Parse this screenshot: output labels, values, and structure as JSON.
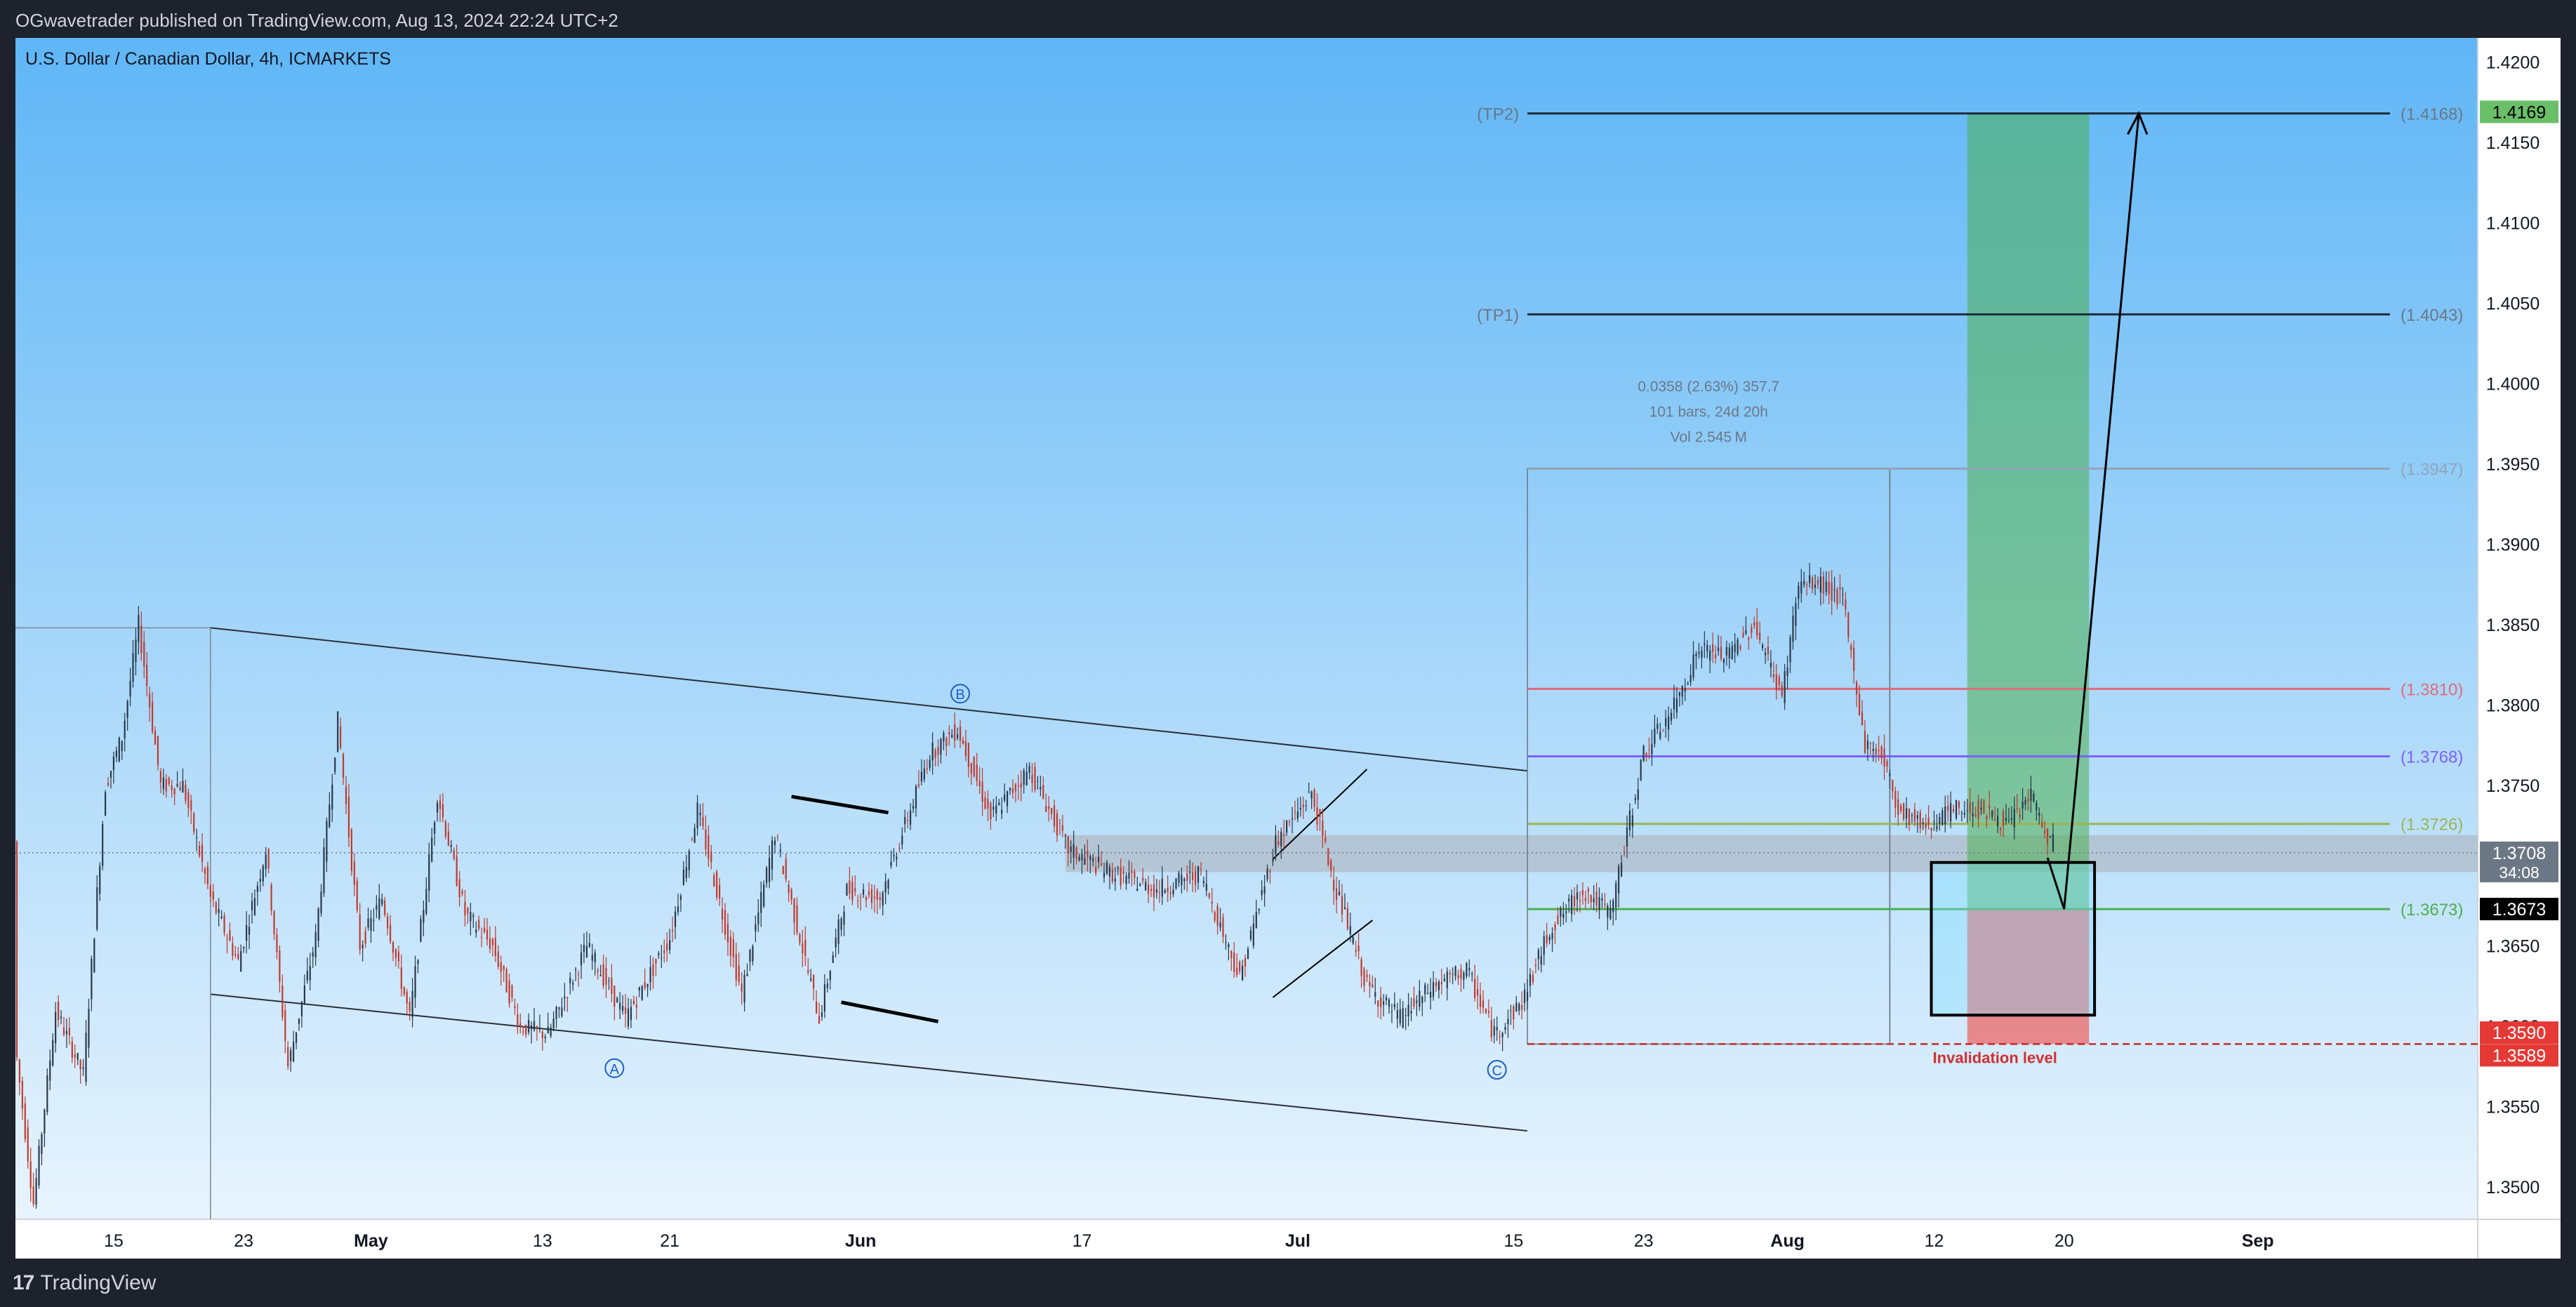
{
  "header": {
    "published": "OGwavetrader published on TradingView.com, Aug 13, 2024 22:24 UTC+2"
  },
  "chart_data": {
    "type": "candlestick",
    "title": "U.S. Dollar / Canadian Dollar, 4h, ICMARKETS",
    "y_axis": {
      "min": 1.348,
      "max": 1.4215,
      "ticks": [
        "1.4200",
        "1.4150",
        "1.4100",
        "1.4050",
        "1.4000",
        "1.3950",
        "1.3900",
        "1.3850",
        "1.3800",
        "1.3750",
        "1.3700",
        "1.3650",
        "1.3600",
        "1.3550",
        "1.3500"
      ],
      "tick_values": [
        1.42,
        1.415,
        1.41,
        1.405,
        1.4,
        1.395,
        1.39,
        1.385,
        1.38,
        1.375,
        1.37,
        1.365,
        1.36,
        1.355,
        1.35
      ]
    },
    "x_axis": {
      "labels": [
        {
          "text": "15",
          "bar": 35,
          "bold": false
        },
        {
          "text": "23",
          "bar": 82,
          "bold": false
        },
        {
          "text": "May",
          "bar": 128,
          "bold": true
        },
        {
          "text": "13",
          "bar": 190,
          "bold": false
        },
        {
          "text": "21",
          "bar": 236,
          "bold": false
        },
        {
          "text": "Jun",
          "bar": 305,
          "bold": true
        },
        {
          "text": "17",
          "bar": 385,
          "bold": false
        },
        {
          "text": "Jul",
          "bar": 463,
          "bold": true
        },
        {
          "text": "15",
          "bar": 541,
          "bold": false
        },
        {
          "text": "23",
          "bar": 588,
          "bold": false
        },
        {
          "text": "Aug",
          "bar": 640,
          "bold": true
        },
        {
          "text": "12",
          "bar": 693,
          "bold": false
        },
        {
          "text": "20",
          "bar": 740,
          "bold": false
        },
        {
          "text": "Sep",
          "bar": 810,
          "bold": true
        }
      ],
      "total_slots": 890
    },
    "price_keypoints": [
      [
        0,
        1.358
      ],
      [
        6,
        1.349
      ],
      [
        14,
        1.361
      ],
      [
        24,
        1.357
      ],
      [
        32,
        1.375
      ],
      [
        38,
        1.378
      ],
      [
        44,
        1.385
      ],
      [
        52,
        1.375
      ],
      [
        60,
        1.375
      ],
      [
        70,
        1.368
      ],
      [
        80,
        1.364
      ],
      [
        90,
        1.371
      ],
      [
        98,
        1.3575
      ],
      [
        108,
        1.3655
      ],
      [
        116,
        1.379
      ],
      [
        124,
        1.365
      ],
      [
        132,
        1.368
      ],
      [
        142,
        1.3605
      ],
      [
        152,
        1.3745
      ],
      [
        162,
        1.367
      ],
      [
        172,
        1.365
      ],
      [
        182,
        1.36
      ],
      [
        192,
        1.3595
      ],
      [
        206,
        1.365
      ],
      [
        220,
        1.3605
      ],
      [
        236,
        1.3655
      ],
      [
        246,
        1.3735
      ],
      [
        262,
        1.362
      ],
      [
        274,
        1.372
      ],
      [
        290,
        1.3605
      ],
      [
        300,
        1.3685
      ],
      [
        312,
        1.368
      ],
      [
        320,
        1.372
      ],
      [
        330,
        1.377
      ],
      [
        340,
        1.3785
      ],
      [
        352,
        1.373
      ],
      [
        366,
        1.376
      ],
      [
        380,
        1.371
      ],
      [
        396,
        1.3695
      ],
      [
        412,
        1.3685
      ],
      [
        428,
        1.3695
      ],
      [
        442,
        1.363
      ],
      [
        455,
        1.3715
      ],
      [
        468,
        1.3745
      ],
      [
        476,
        1.369
      ],
      [
        488,
        1.3625
      ],
      [
        500,
        1.3605
      ],
      [
        512,
        1.3625
      ],
      [
        524,
        1.3635
      ],
      [
        534,
        1.3595
      ],
      [
        544,
        1.3615
      ],
      [
        554,
        1.366
      ],
      [
        566,
        1.3685
      ],
      [
        576,
        1.367
      ],
      [
        588,
        1.377
      ],
      [
        598,
        1.3795
      ],
      [
        608,
        1.3835
      ],
      [
        618,
        1.383
      ],
      [
        628,
        1.385
      ],
      [
        638,
        1.3805
      ],
      [
        644,
        1.3875
      ],
      [
        652,
        1.3875
      ],
      [
        660,
        1.3865
      ],
      [
        668,
        1.3775
      ],
      [
        674,
        1.377
      ],
      [
        680,
        1.3735
      ],
      [
        690,
        1.3725
      ],
      [
        700,
        1.3735
      ],
      [
        710,
        1.3735
      ],
      [
        720,
        1.3725
      ],
      [
        728,
        1.3745
      ],
      [
        734,
        1.3715
      ]
    ],
    "last_bar_index": 736,
    "current_price_label": "1.3708",
    "countdown": "34:08",
    "levels": [
      {
        "name": "TP2",
        "value": 1.4168,
        "label": "(TP2)",
        "price_label": "(1.4168)",
        "color": "#1f2a36"
      },
      {
        "name": "TP1",
        "value": 1.4043,
        "label": "(TP1)",
        "price_label": "(1.4043)",
        "color": "#1f2a36"
      },
      {
        "name": "L1",
        "value": 1.3947,
        "label": "",
        "price_label": "(1.3947)",
        "color": "#90a4b8"
      },
      {
        "name": "L2",
        "value": 1.381,
        "label": "",
        "price_label": "(1.3810)",
        "color": "#e06b7a"
      },
      {
        "name": "L3",
        "value": 1.3768,
        "label": "",
        "price_label": "(1.3768)",
        "color": "#7b61ff"
      },
      {
        "name": "L4",
        "value": 1.3726,
        "label": "",
        "price_label": "(1.3726)",
        "color": "#9bb555"
      },
      {
        "name": "L5",
        "value": 1.3673,
        "label": "",
        "price_label": "(1.3673)",
        "color": "#4caf50"
      }
    ],
    "price_badges": [
      {
        "text": "1.4169",
        "value": 1.4169,
        "color": "#6abf69",
        "text_color": "#000000"
      },
      {
        "text": "1.3673",
        "value": 1.3673,
        "color": "#000000",
        "text_color": "#ffffff"
      },
      {
        "text": "1.3590",
        "value": 1.359,
        "color": "#e53935",
        "text_color": "#ffffff"
      },
      {
        "text": "1.3589",
        "value": 1.3589,
        "color": "#e53935",
        "text_color": "#ffffff"
      }
    ],
    "measure_box": {
      "line1": "0.0358 (2.63%) 357.7",
      "line2": "101 bars, 24d 20h",
      "line3": "Vol 2.545 M"
    },
    "wave_labels": [
      {
        "text": "A",
        "bar": 216,
        "value": 1.3574
      },
      {
        "text": "B",
        "bar": 341,
        "value": 1.3807
      },
      {
        "text": "C",
        "bar": 535,
        "value": 1.3573
      }
    ],
    "invalidation_label": "Invalidation level",
    "invalidation_value": 1.3589,
    "position": {
      "entry": 1.3673,
      "target": 1.4168,
      "stop": 1.3589,
      "bar_start": 705,
      "bar_end": 749
    },
    "zone_band": {
      "top": 1.3719,
      "bottom": 1.3696
    }
  },
  "footer": {
    "brand": "TradingView",
    "logo": "17"
  },
  "colors": {
    "bg_top": "#5fb6f6",
    "bg_bottom": "#e8f4fd",
    "up": "#26384a",
    "down": "#c0392b",
    "frame": "#1e222d"
  }
}
